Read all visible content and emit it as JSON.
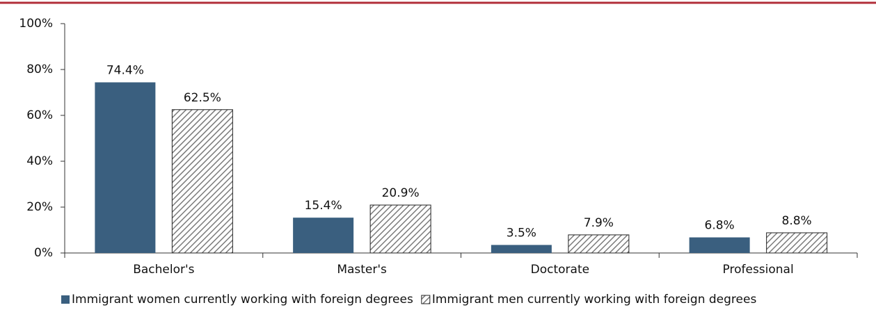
{
  "chart_data": {
    "type": "bar",
    "categories": [
      "Bachelor's",
      "Master's",
      "Doctorate",
      "Professional"
    ],
    "series": [
      {
        "name": "Immigrant women currently working with foreign degrees",
        "color": "#3a5f7f",
        "values": [
          74.4,
          15.4,
          3.5,
          6.8
        ],
        "value_labels": [
          "74.4%",
          "15.4%",
          "3.5%",
          "6.8%"
        ]
      },
      {
        "name": "Immigrant men currently working with foreign degrees",
        "color": "#7a7a7a",
        "pattern": "hatch",
        "values": [
          62.5,
          20.9,
          7.9,
          8.8
        ],
        "value_labels": [
          "62.5%",
          "20.9%",
          "7.9%",
          "8.8%"
        ]
      }
    ],
    "ylim": [
      0,
      100
    ],
    "yticks": [
      {
        "value": 0,
        "label": "0%"
      },
      {
        "value": 20,
        "label": "20%"
      },
      {
        "value": 40,
        "label": "40%"
      },
      {
        "value": 60,
        "label": "60%"
      },
      {
        "value": 80,
        "label": "80%"
      },
      {
        "value": 100,
        "label": "100%"
      }
    ],
    "grid": false,
    "legend": "bottom"
  }
}
